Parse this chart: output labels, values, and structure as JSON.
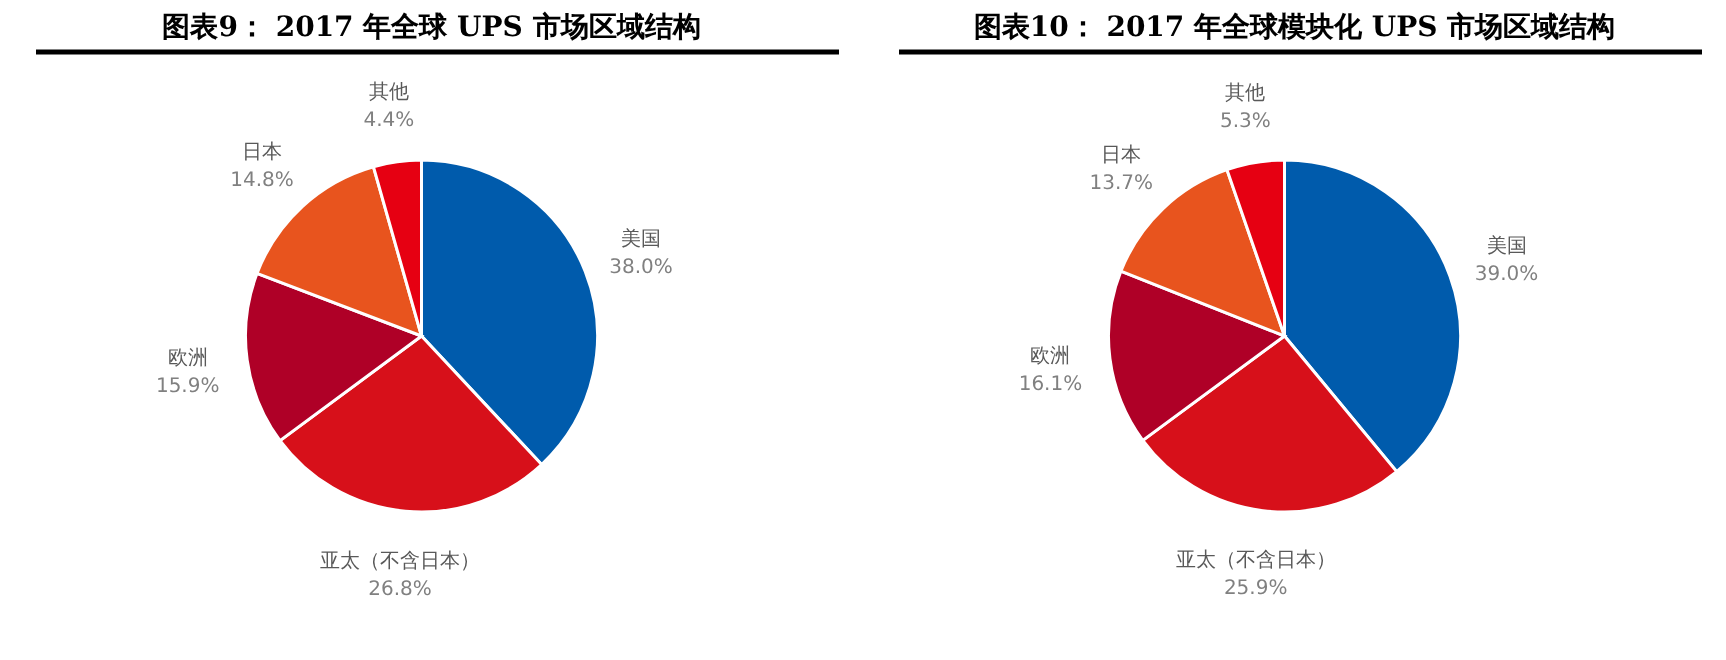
{
  "chart_data": [
    {
      "type": "pie",
      "title": "图表9：  2017 年全球 UPS 市场区域结构",
      "categories": [
        "美国",
        "亚太（不含日本）",
        "欧洲",
        "日本",
        "其他"
      ],
      "values": [
        38.0,
        26.8,
        15.9,
        14.8,
        4.4
      ],
      "value_labels": [
        "38.0%",
        "26.8%",
        "15.9%",
        "14.8%",
        "4.4%"
      ],
      "colors": [
        "#005bac",
        "#d7101a",
        "#af0027",
        "#e8541e",
        "#e60012"
      ]
    },
    {
      "type": "pie",
      "title": "图表10：  2017 年全球模块化 UPS 市场区域结构",
      "categories": [
        "美国",
        "亚太（不含日本）",
        "欧洲",
        "日本",
        "其他"
      ],
      "values": [
        39.0,
        25.9,
        16.1,
        13.7,
        5.3
      ],
      "value_labels": [
        "39.0%",
        "25.9%",
        "16.1%",
        "13.7%",
        "5.3%"
      ],
      "colors": [
        "#005bac",
        "#d7101a",
        "#af0027",
        "#e8541e",
        "#e60012"
      ]
    }
  ]
}
